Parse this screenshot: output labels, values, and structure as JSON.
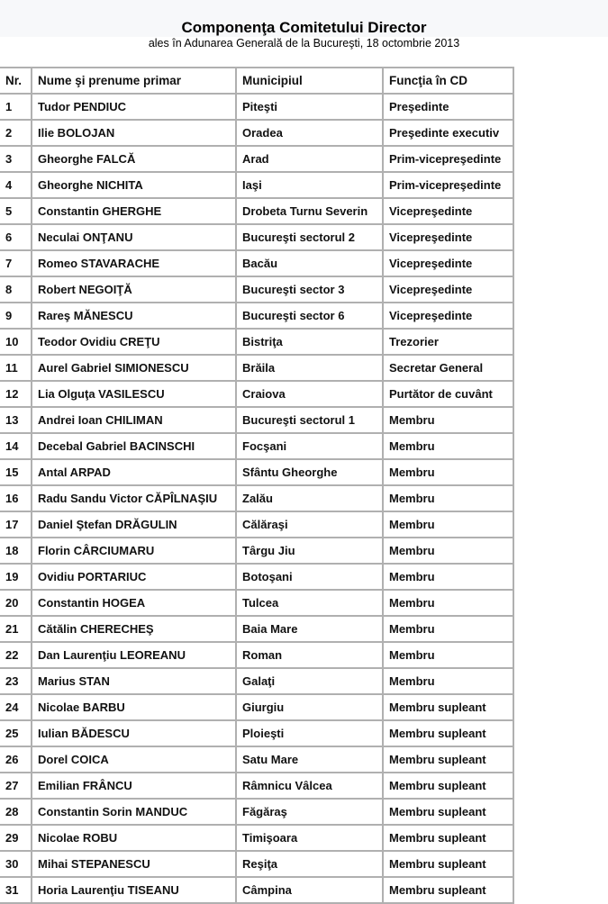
{
  "title": "Componenţa Comitetului Director",
  "subtitle": "ales în Adunarea Generală de la Bucureşti, 18 octombrie 2013",
  "headers": [
    "Nr.",
    "Nume şi prenume primar",
    "Municipiul",
    "Funcţia în CD"
  ],
  "rows": [
    [
      "1",
      "Tudor PENDIUC",
      "Piteşti",
      "Preşedinte"
    ],
    [
      "2",
      "Ilie BOLOJAN",
      "Oradea",
      "Preşedinte executiv"
    ],
    [
      "3",
      "Gheorghe FALCĂ",
      "Arad",
      "Prim-vicepreşedinte"
    ],
    [
      "4",
      "Gheorghe NICHITA",
      "Iaşi",
      "Prim-vicepreşedinte"
    ],
    [
      "5",
      "Constantin GHERGHE",
      "Drobeta Turnu Severin",
      "Vicepreşedinte"
    ],
    [
      "6",
      "Neculai ONŢANU",
      "Bucureşti sectorul 2",
      "Vicepreşedinte"
    ],
    [
      "7",
      "Romeo STAVARACHE",
      "Bacău",
      "Vicepreşedinte"
    ],
    [
      "8",
      "Robert NEGOIŢĂ",
      "Bucureşti sector 3",
      "Vicepreşedinte"
    ],
    [
      "9",
      "Rareş MĂNESCU",
      "Bucureşti sector 6",
      "Vicepreşedinte"
    ],
    [
      "10",
      "Teodor Ovidiu CREŢU",
      "Bistriţa",
      "Trezorier"
    ],
    [
      "11",
      "Aurel Gabriel SIMIONESCU",
      "Brăila",
      "Secretar General"
    ],
    [
      "12",
      "Lia Olguţa VASILESCU",
      "Craiova",
      "Purtător de cuvânt"
    ],
    [
      "13",
      "Andrei Ioan CHILIMAN",
      "Bucureşti sectorul 1",
      "Membru"
    ],
    [
      "14",
      "Decebal Gabriel BACINSCHI",
      "Focşani",
      "Membru"
    ],
    [
      "15",
      "Antal ARPAD",
      "Sfântu Gheorghe",
      "Membru"
    ],
    [
      "16",
      "Radu Sandu Victor CĂPÎLNAŞIU",
      "Zalău",
      "Membru"
    ],
    [
      "17",
      "Daniel Ştefan DRĂGULIN",
      "Călăraşi",
      "Membru"
    ],
    [
      "18",
      "Florin CÂRCIUMARU",
      "Târgu Jiu",
      "Membru"
    ],
    [
      "19",
      "Ovidiu PORTARIUC",
      "Botoşani",
      "Membru"
    ],
    [
      "20",
      "Constantin HOGEA",
      "Tulcea",
      "Membru"
    ],
    [
      "21",
      "Cătălin CHERECHEŞ",
      "Baia Mare",
      "Membru"
    ],
    [
      "22",
      "Dan Laurenţiu LEOREANU",
      "Roman",
      "Membru"
    ],
    [
      "23",
      "Marius STAN",
      "Galaţi",
      "Membru"
    ],
    [
      "24",
      "Nicolae BARBU",
      "Giurgiu",
      "Membru supleant"
    ],
    [
      "25",
      "Iulian BĂDESCU",
      "Ploieşti",
      "Membru supleant"
    ],
    [
      "26",
      "Dorel COICA",
      "Satu Mare",
      "Membru supleant"
    ],
    [
      "27",
      "Emilian FRÂNCU",
      "Râmnicu Vâlcea",
      "Membru supleant"
    ],
    [
      "28",
      "Constantin Sorin MANDUC",
      "Făgăraş",
      "Membru supleant"
    ],
    [
      "29",
      "Nicolae ROBU",
      "Timişoara",
      "Membru supleant"
    ],
    [
      "30",
      "Mihai STEPANESCU",
      "Reşiţa",
      "Membru supleant"
    ],
    [
      "31",
      "Horia Laurenţiu TISEANU",
      "Câmpina",
      "Membru supleant"
    ]
  ]
}
